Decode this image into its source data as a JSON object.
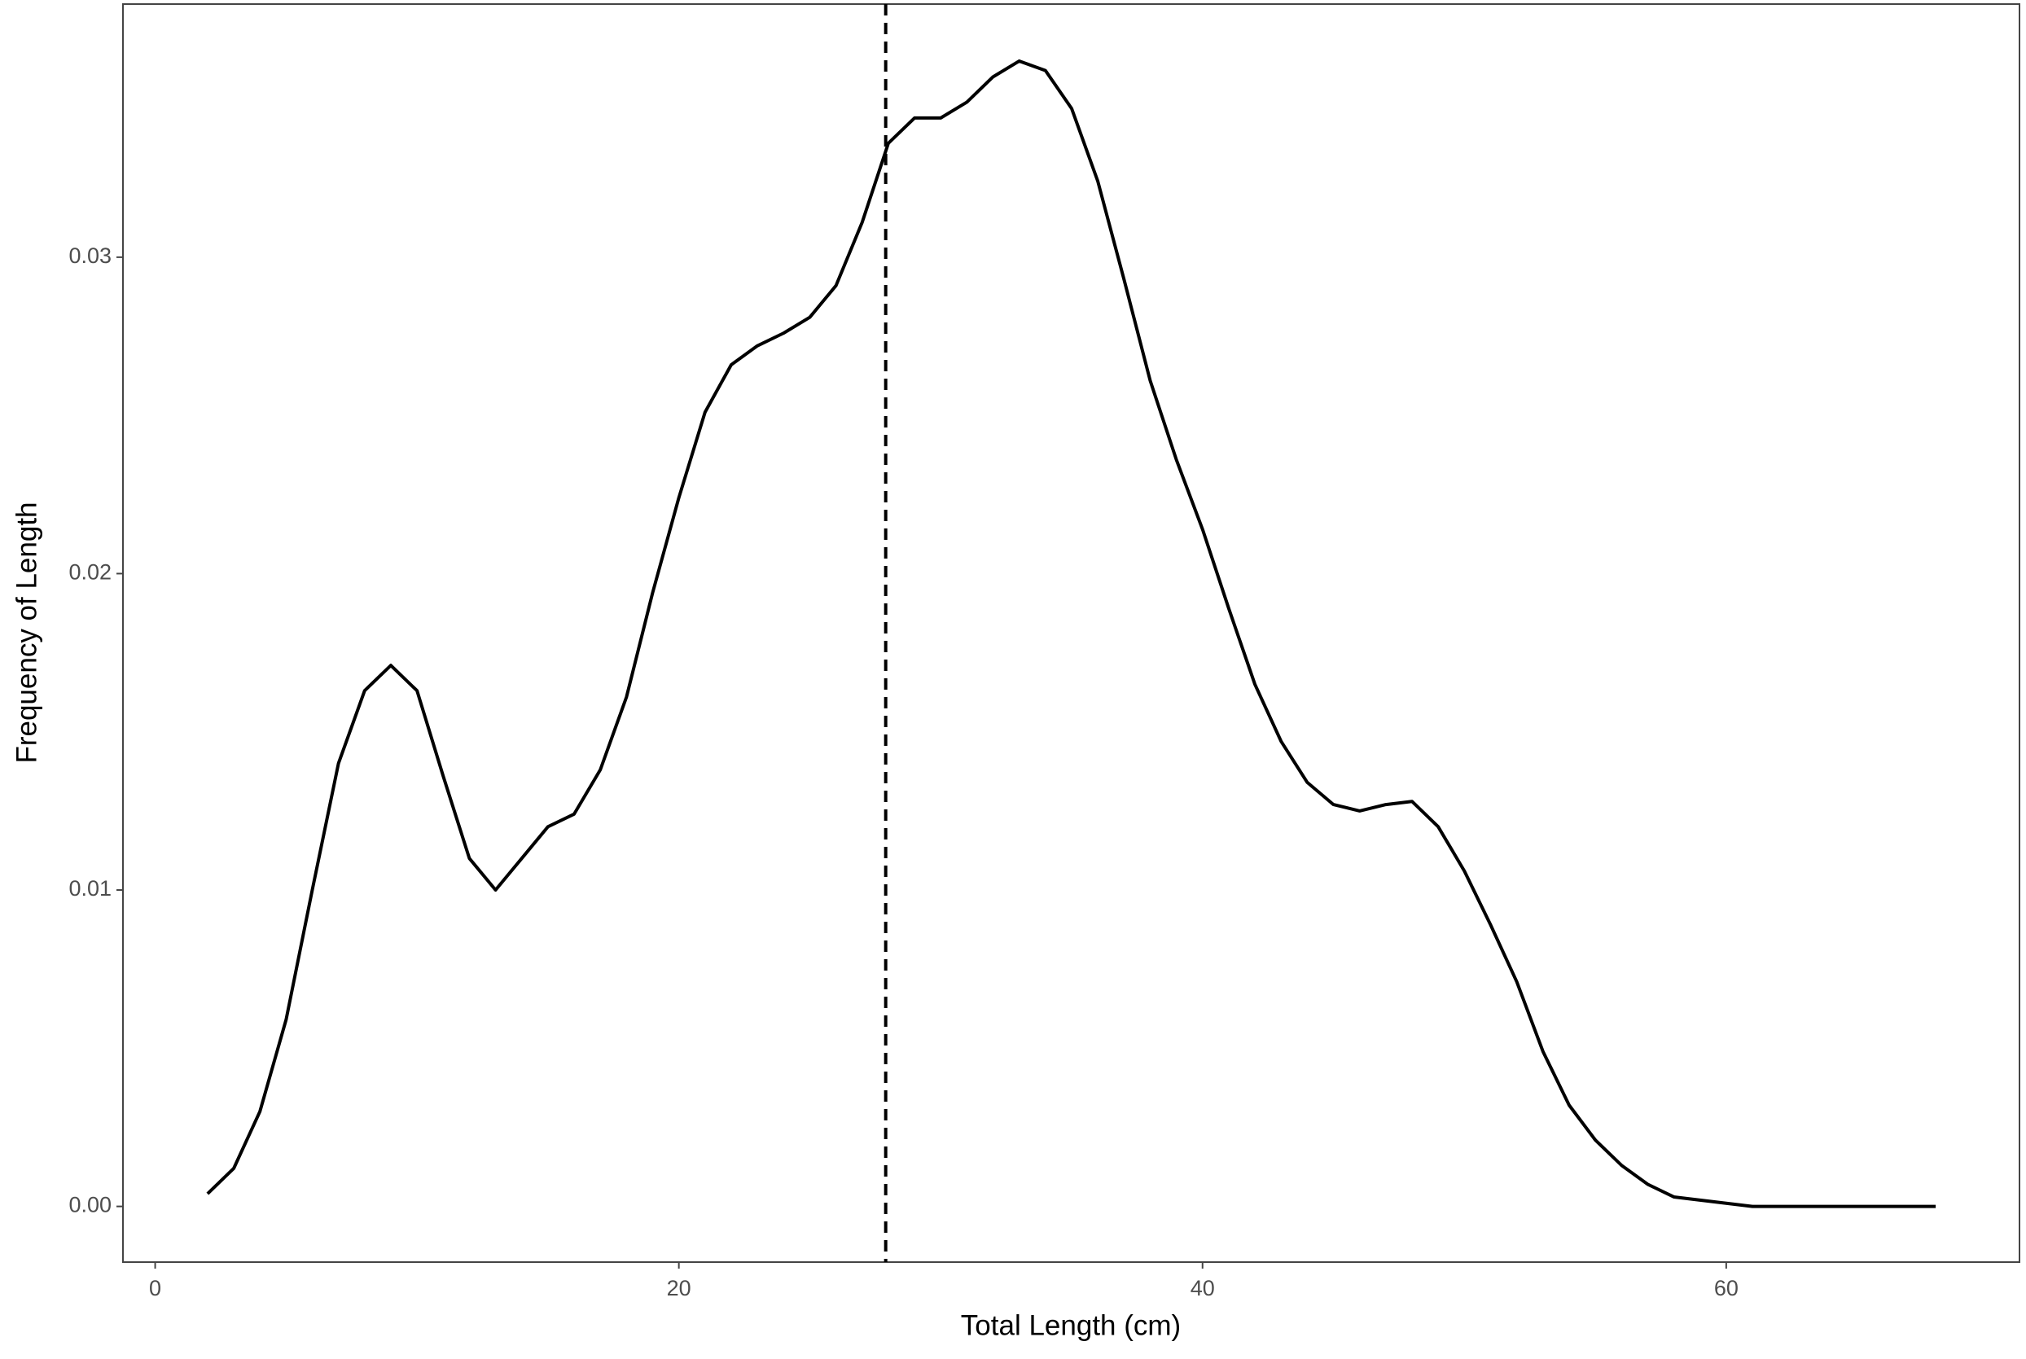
{
  "chart_data": {
    "type": "line",
    "x_label": "Total Length (cm)",
    "y_label": "Frequency of Length",
    "x": [
      2,
      3,
      4,
      5,
      6,
      7,
      8,
      9,
      10,
      11,
      12,
      13,
      14,
      15,
      16,
      17,
      18,
      19,
      20,
      21,
      22,
      23,
      24,
      25,
      26,
      27,
      28,
      29,
      30,
      31,
      32,
      33,
      34,
      35,
      36,
      37,
      38,
      39,
      40,
      41,
      42,
      43,
      44,
      45,
      46,
      47,
      48,
      49,
      50,
      51,
      52,
      53,
      54,
      55,
      56,
      57,
      58,
      59,
      60,
      61,
      62,
      63,
      64,
      65,
      66,
      67,
      68
    ],
    "series": [
      {
        "color": "#000000",
        "values": [
          0.0004,
          0.0012,
          0.003,
          0.0059,
          0.01,
          0.014,
          0.0163,
          0.0171,
          0.0163,
          0.0136,
          0.011,
          0.01,
          0.011,
          0.012,
          0.0124,
          0.0138,
          0.0161,
          0.0194,
          0.0224,
          0.0251,
          0.0266,
          0.0272,
          0.0276,
          0.0281,
          0.0291,
          0.0311,
          0.0336,
          0.0344,
          0.0344,
          0.0349,
          0.0357,
          0.0362,
          0.0359,
          0.0347,
          0.0324,
          0.0293,
          0.0261,
          0.0236,
          0.0214,
          0.0189,
          0.0165,
          0.0147,
          0.0134,
          0.0127,
          0.0125,
          0.0127,
          0.0128,
          0.012,
          0.0106,
          0.0089,
          0.0071,
          0.0049,
          0.0032,
          0.0021,
          0.0013,
          0.0007,
          0.0003,
          0.0002,
          0.0001,
          0,
          0,
          0,
          0,
          0,
          0,
          0,
          0
        ]
      }
    ],
    "vline": 27.9,
    "xlim": [
      -1.23,
      71.2
    ],
    "ylim": [
      -0.00176,
      0.038
    ],
    "xticks": [
      0,
      20,
      40,
      60
    ],
    "yticks": [
      {
        "value": 0,
        "label": "0.00"
      },
      0.01,
      0.02,
      0.03
    ],
    "grid": false
  }
}
